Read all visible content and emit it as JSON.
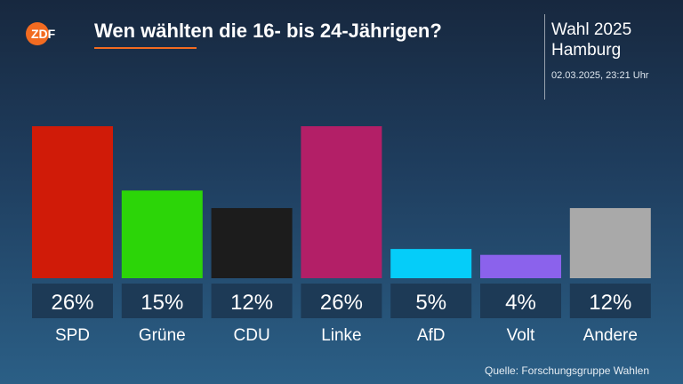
{
  "header": {
    "logo_text": "ZDF",
    "title": "Wen wählten die 16- bis 24-Jährigen?",
    "election_title": "Wahl 2025",
    "election_region": "Hamburg",
    "timestamp": "02.03.2025, 23:21 Uhr"
  },
  "footer": {
    "source": "Quelle: Forschungsgruppe Wahlen"
  },
  "colors": {
    "accent": "#f26b21",
    "label_box": "#1d3a56"
  },
  "chart_data": {
    "type": "bar",
    "title": "Wen wählten die 16- bis 24-Jährigen?",
    "categories": [
      "SPD",
      "Grüne",
      "CDU",
      "Linke",
      "AfD",
      "Volt",
      "Andere"
    ],
    "values": [
      26,
      15,
      12,
      26,
      5,
      4,
      12
    ],
    "value_labels": [
      "26%",
      "15%",
      "12%",
      "26%",
      "5%",
      "4%",
      "12%"
    ],
    "unit": "%",
    "colors": [
      "#d01b08",
      "#2cd508",
      "#1c1c1c",
      "#b31f67",
      "#05cdf9",
      "#8b62ec",
      "#a9a9a9"
    ],
    "ylim": [
      0,
      26
    ],
    "grid": false,
    "legend": "none"
  }
}
